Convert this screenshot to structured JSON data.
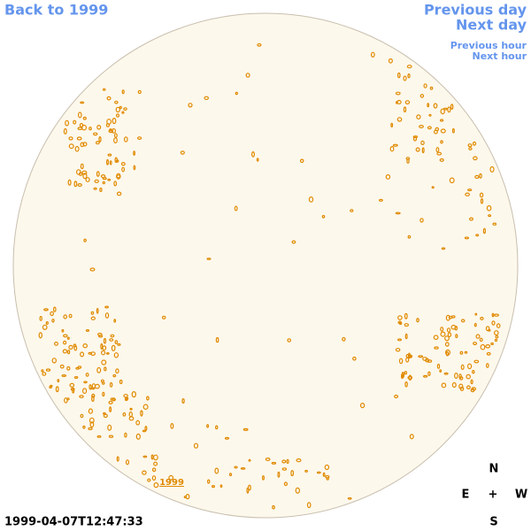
{
  "navigation": {
    "back": "Back to 1999",
    "previous_day": "Previous day",
    "next_day": "Next day",
    "previous_hour": "Previous hour",
    "next_hour": "Next hour"
  },
  "disc_label": "1999",
  "timestamp": "1999-04-07T12:47:33",
  "compass": {
    "north": "N",
    "east": "E",
    "center": "+",
    "west": "W",
    "south": "S"
  }
}
